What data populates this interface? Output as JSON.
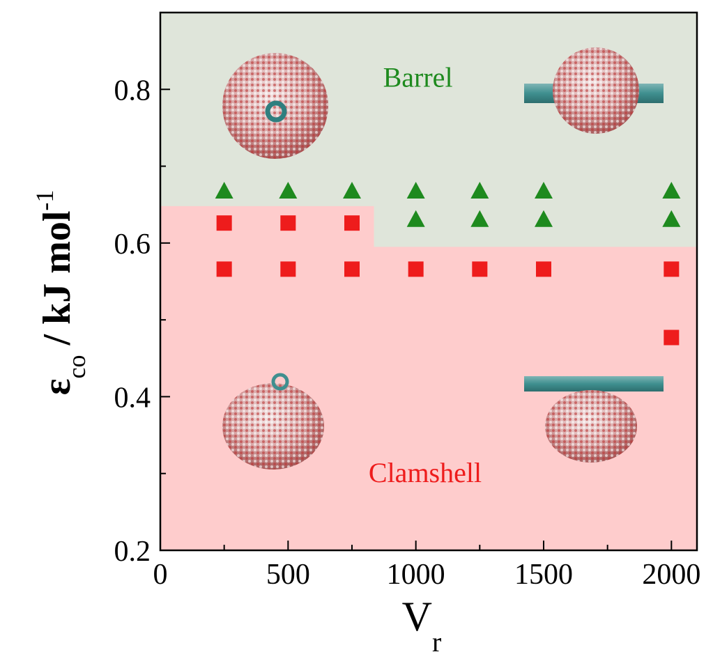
{
  "chart_data": {
    "type": "scatter",
    "xlim": [
      0,
      2100
    ],
    "ylim": [
      0.2,
      0.9
    ],
    "xticks": [
      0,
      500,
      1000,
      1500,
      2000
    ],
    "yticks": [
      0.2,
      0.4,
      0.6,
      0.8
    ],
    "xminor": [
      250,
      750,
      1250,
      1750
    ],
    "yminor": [
      0.3,
      0.5,
      0.7
    ],
    "background": "#dfe5da",
    "regions": [
      {
        "label": "Clamshell",
        "color": "#fecccc",
        "boundary_x": [
          0,
          836,
          836,
          2100
        ],
        "boundary_y": [
          0.648,
          0.648,
          0.595,
          0.595
        ]
      }
    ],
    "annotations": [
      {
        "text": "Barrel",
        "x": 1008,
        "y": 0.816,
        "color": "#1e8a1e"
      }
    ],
    "ylabel": {
      "symbol": "ε",
      "sub": "co",
      "unit": " / kJ mol",
      "sup": "-1"
    },
    "xlabel": {
      "symbol": "V",
      "sub": "r"
    },
    "series": [
      {
        "marker": "triangle",
        "color": "#1e8a1e",
        "x": [
          250,
          500,
          750,
          1000,
          1250,
          1500,
          2000,
          1000,
          1250,
          1500,
          2000
        ],
        "values": [
          0.667,
          0.667,
          0.667,
          0.667,
          0.667,
          0.667,
          0.667,
          0.63,
          0.63,
          0.63,
          0.63
        ]
      },
      {
        "marker": "square",
        "color": "#ee1c1c",
        "x": [
          250,
          500,
          750,
          250,
          500,
          750,
          1000,
          1250,
          1500,
          2000,
          2000
        ],
        "values": [
          0.626,
          0.626,
          0.626,
          0.566,
          0.566,
          0.566,
          0.566,
          0.566,
          0.566,
          0.566,
          0.477
        ]
      }
    ]
  }
}
